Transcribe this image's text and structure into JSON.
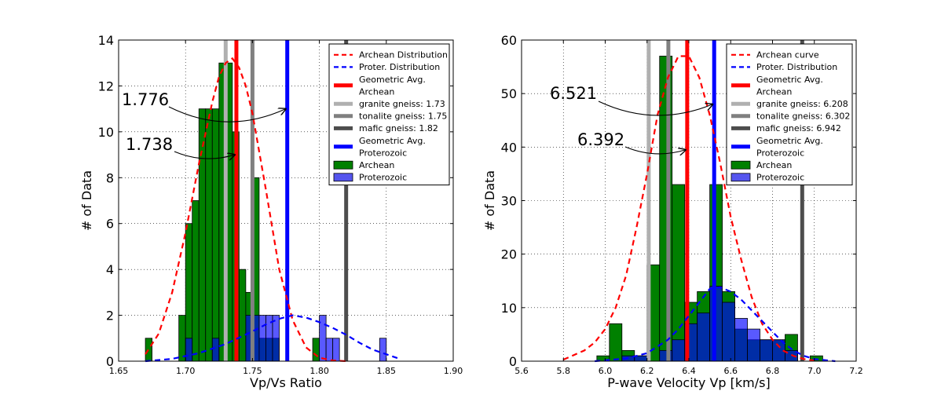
{
  "chart_data": [
    {
      "type": "bar",
      "xlabel": "Vp/Vs Ratio",
      "ylabel": "# of Data",
      "xlim": [
        1.65,
        1.9
      ],
      "ylim": [
        0,
        14
      ],
      "xticks": [
        1.65,
        1.7,
        1.75,
        1.8,
        1.85,
        1.9
      ],
      "xtick_labels": [
        "1.65",
        "1.70",
        "1.75",
        "1.80",
        "1.85",
        "1.90"
      ],
      "yticks": [
        0,
        2,
        4,
        6,
        8,
        10,
        12,
        14
      ],
      "ytick_labels": [
        "0",
        "2",
        "4",
        "6",
        "8",
        "10",
        "12",
        "14"
      ],
      "grid": true,
      "legend_position": "top-right",
      "series": [
        {
          "name": "Archean",
          "kind": "histogram",
          "color": "#008000",
          "bins": [
            {
              "x0": 1.67,
              "x1": 1.675,
              "value": 1
            },
            {
              "x0": 1.695,
              "x1": 1.7,
              "value": 2
            },
            {
              "x0": 1.7,
              "x1": 1.705,
              "value": 6
            },
            {
              "x0": 1.705,
              "x1": 1.71,
              "value": 7
            },
            {
              "x0": 1.71,
              "x1": 1.715,
              "value": 11
            },
            {
              "x0": 1.715,
              "x1": 1.72,
              "value": 11
            },
            {
              "x0": 1.72,
              "x1": 1.725,
              "value": 11
            },
            {
              "x0": 1.725,
              "x1": 1.73,
              "value": 13
            },
            {
              "x0": 1.73,
              "x1": 1.735,
              "value": 13
            },
            {
              "x0": 1.735,
              "x1": 1.74,
              "value": 10
            },
            {
              "x0": 1.74,
              "x1": 1.745,
              "value": 4
            },
            {
              "x0": 1.745,
              "x1": 1.75,
              "value": 3
            },
            {
              "x0": 1.75,
              "x1": 1.755,
              "value": 8
            },
            {
              "x0": 1.755,
              "x1": 1.76,
              "value": 1
            },
            {
              "x0": 1.76,
              "x1": 1.765,
              "value": 1
            },
            {
              "x0": 1.765,
              "x1": 1.77,
              "value": 1
            },
            {
              "x0": 1.795,
              "x1": 1.8,
              "value": 1
            }
          ]
        },
        {
          "name": "Proterozoic",
          "kind": "histogram",
          "color": "#0000ff",
          "bins": [
            {
              "x0": 1.7,
              "x1": 1.705,
              "value": 1
            },
            {
              "x0": 1.72,
              "x1": 1.725,
              "value": 1
            },
            {
              "x0": 1.745,
              "x1": 1.75,
              "value": 2
            },
            {
              "x0": 1.75,
              "x1": 1.755,
              "value": 2
            },
            {
              "x0": 1.755,
              "x1": 1.76,
              "value": 2
            },
            {
              "x0": 1.76,
              "x1": 1.765,
              "value": 2
            },
            {
              "x0": 1.765,
              "x1": 1.77,
              "value": 2
            },
            {
              "x0": 1.8,
              "x1": 1.805,
              "value": 2
            },
            {
              "x0": 1.805,
              "x1": 1.81,
              "value": 1
            },
            {
              "x0": 1.81,
              "x1": 1.815,
              "value": 1
            },
            {
              "x0": 1.845,
              "x1": 1.85,
              "value": 1
            }
          ]
        },
        {
          "name": "Archean Distribution",
          "kind": "dashed-line",
          "color": "#ff0000",
          "x": [
            1.67,
            1.68,
            1.69,
            1.7,
            1.71,
            1.72,
            1.725,
            1.73,
            1.735,
            1.74,
            1.745,
            1.75,
            1.76,
            1.77,
            1.78,
            1.79,
            1.8,
            1.81,
            1.82
          ],
          "y": [
            0.3,
            1.2,
            3.0,
            5.6,
            8.6,
            11.3,
            12.4,
            13.0,
            13.2,
            12.8,
            12.0,
            10.8,
            7.5,
            4.0,
            1.8,
            0.6,
            0.15,
            0.03,
            0.0
          ]
        },
        {
          "name": "Proter. Distribution",
          "kind": "dashed-line",
          "color": "#0000ff",
          "x": [
            1.67,
            1.69,
            1.71,
            1.73,
            1.75,
            1.76,
            1.77,
            1.78,
            1.79,
            1.8,
            1.81,
            1.82,
            1.83,
            1.84,
            1.85,
            1.86
          ],
          "y": [
            0.0,
            0.1,
            0.35,
            0.75,
            1.3,
            1.6,
            1.85,
            2.0,
            1.9,
            1.7,
            1.45,
            1.15,
            0.8,
            0.5,
            0.3,
            0.1
          ]
        }
      ],
      "vlines": [
        {
          "name": "Geometric Avg. Archean",
          "x": 1.738,
          "color": "#ff0000"
        },
        {
          "name": "granite gneiss: 1.73",
          "x": 1.73,
          "color": "#b0b0b0"
        },
        {
          "name": "tonalite gneiss: 1.75",
          "x": 1.75,
          "color": "#808080"
        },
        {
          "name": "mafic gneiss: 1.82",
          "x": 1.82,
          "color": "#4d4d4d"
        },
        {
          "name": "Geometric Avg. Proterozoic",
          "x": 1.776,
          "color": "#0000ff"
        }
      ],
      "annotations": [
        {
          "text": "1.776",
          "x": 1.776,
          "y": 11
        },
        {
          "text": "1.738",
          "x": 1.738,
          "y": 9
        }
      ],
      "legend": [
        {
          "label": "Archean Distribution",
          "style": "dash",
          "color": "#ff0000"
        },
        {
          "label": "Proter. Distribution",
          "style": "dash",
          "color": "#0000ff"
        },
        {
          "label": [
            "Geometric Avg.",
            "Archean"
          ],
          "style": "thick",
          "color": "#ff0000"
        },
        {
          "label": "granite gneiss: 1.73",
          "style": "thick",
          "color": "#b0b0b0"
        },
        {
          "label": "tonalite gneiss: 1.75",
          "style": "thick",
          "color": "#808080"
        },
        {
          "label": "mafic gneiss: 1.82",
          "style": "thick",
          "color": "#4d4d4d"
        },
        {
          "label": [
            "Geometric Avg.",
            "Proterozoic"
          ],
          "style": "thick",
          "color": "#0000ff"
        },
        {
          "label": "Archean",
          "style": "patch",
          "color": "#008000"
        },
        {
          "label": "Proterozoic",
          "style": "patch",
          "color": "#5555ee"
        }
      ]
    },
    {
      "type": "bar",
      "xlabel": "P-wave Velocity Vp [km/s]",
      "ylabel": "# of Data",
      "xlim": [
        5.6,
        7.2
      ],
      "ylim": [
        0,
        60
      ],
      "xticks": [
        5.6,
        5.8,
        6.0,
        6.2,
        6.4,
        6.6,
        6.8,
        7.0,
        7.2
      ],
      "xtick_labels": [
        "5.6",
        "5.8",
        "6.0",
        "6.2",
        "6.4",
        "6.6",
        "6.8",
        "7.0",
        "7.2"
      ],
      "yticks": [
        0,
        10,
        20,
        30,
        40,
        50,
        60
      ],
      "ytick_labels": [
        "0",
        "10",
        "20",
        "30",
        "40",
        "50",
        "60"
      ],
      "grid": true,
      "legend_position": "top-right",
      "series": [
        {
          "name": "Archean",
          "kind": "histogram",
          "color": "#008000",
          "bins": [
            {
              "x0": 5.96,
              "x1": 6.02,
              "value": 1
            },
            {
              "x0": 6.02,
              "x1": 6.08,
              "value": 7
            },
            {
              "x0": 6.08,
              "x1": 6.14,
              "value": 2
            },
            {
              "x0": 6.14,
              "x1": 6.2,
              "value": 1
            },
            {
              "x0": 6.2,
              "x1": 6.26,
              "value": 18
            },
            {
              "x0": 6.26,
              "x1": 6.32,
              "value": 57
            },
            {
              "x0": 6.32,
              "x1": 6.38,
              "value": 33
            },
            {
              "x0": 6.38,
              "x1": 6.44,
              "value": 11
            },
            {
              "x0": 6.44,
              "x1": 6.5,
              "value": 13
            },
            {
              "x0": 6.5,
              "x1": 6.56,
              "value": 33
            },
            {
              "x0": 6.56,
              "x1": 6.62,
              "value": 13
            },
            {
              "x0": 6.62,
              "x1": 6.68,
              "value": 6
            },
            {
              "x0": 6.68,
              "x1": 6.74,
              "value": 4
            },
            {
              "x0": 6.74,
              "x1": 6.8,
              "value": 4
            },
            {
              "x0": 6.8,
              "x1": 6.86,
              "value": 4
            },
            {
              "x0": 6.86,
              "x1": 6.92,
              "value": 5
            },
            {
              "x0": 6.98,
              "x1": 7.04,
              "value": 1
            }
          ]
        },
        {
          "name": "Proterozoic",
          "kind": "histogram",
          "color": "#0000ff",
          "bins": [
            {
              "x0": 6.08,
              "x1": 6.14,
              "value": 1
            },
            {
              "x0": 6.14,
              "x1": 6.2,
              "value": 1
            },
            {
              "x0": 6.26,
              "x1": 6.32,
              "value": 2
            },
            {
              "x0": 6.32,
              "x1": 6.38,
              "value": 4
            },
            {
              "x0": 6.38,
              "x1": 6.44,
              "value": 7
            },
            {
              "x0": 6.44,
              "x1": 6.5,
              "value": 9
            },
            {
              "x0": 6.5,
              "x1": 6.56,
              "value": 14
            },
            {
              "x0": 6.56,
              "x1": 6.62,
              "value": 11
            },
            {
              "x0": 6.62,
              "x1": 6.68,
              "value": 8
            },
            {
              "x0": 6.68,
              "x1": 6.74,
              "value": 6
            },
            {
              "x0": 6.74,
              "x1": 6.8,
              "value": 4
            },
            {
              "x0": 6.8,
              "x1": 6.86,
              "value": 4
            },
            {
              "x0": 6.86,
              "x1": 6.92,
              "value": 2
            }
          ]
        },
        {
          "name": "Archean curve",
          "kind": "dashed-line",
          "color": "#ff0000",
          "x": [
            5.8,
            5.9,
            5.95,
            6.0,
            6.05,
            6.1,
            6.15,
            6.2,
            6.25,
            6.3,
            6.35,
            6.4,
            6.45,
            6.5,
            6.55,
            6.6,
            6.65,
            6.7,
            6.75,
            6.8,
            6.85,
            6.9,
            6.95,
            7.0
          ],
          "y": [
            0.3,
            2,
            3.5,
            6,
            10,
            16,
            25,
            35,
            46,
            53,
            57,
            57,
            53,
            46,
            37,
            27,
            19,
            12,
            7,
            4,
            2,
            1,
            0.4,
            0.1
          ]
        },
        {
          "name": "Proter. Distribution",
          "kind": "dashed-line",
          "color": "#0000ff",
          "x": [
            5.95,
            6.1,
            6.2,
            6.3,
            6.35,
            6.4,
            6.45,
            6.5,
            6.55,
            6.6,
            6.65,
            6.7,
            6.75,
            6.8,
            6.85,
            6.9,
            6.95,
            7.0,
            7.1
          ],
          "y": [
            0,
            0.5,
            1.5,
            4,
            6,
            8.5,
            11,
            13.5,
            13.8,
            13,
            11.5,
            9.5,
            7.5,
            5.5,
            3.5,
            2,
            1,
            0.4,
            0
          ]
        }
      ],
      "vlines": [
        {
          "name": "Geometric Avg. Archean",
          "x": 6.392,
          "color": "#ff0000"
        },
        {
          "name": "granite gneiss: 6.208",
          "x": 6.208,
          "color": "#b0b0b0"
        },
        {
          "name": "tonalite gneiss: 6.302",
          "x": 6.302,
          "color": "#808080"
        },
        {
          "name": "mafic gneiss: 6.942",
          "x": 6.942,
          "color": "#4d4d4d"
        },
        {
          "name": "Geometric Avg. Proterozoic",
          "x": 6.521,
          "color": "#0000ff"
        }
      ],
      "annotations": [
        {
          "text": "6.521",
          "x": 6.521,
          "y": 48
        },
        {
          "text": "6.392",
          "x": 6.392,
          "y": 39.5
        }
      ],
      "legend": [
        {
          "label": "Archean curve",
          "style": "dash",
          "color": "#ff0000"
        },
        {
          "label": "Proter. Distribution",
          "style": "dash",
          "color": "#0000ff"
        },
        {
          "label": [
            "Geometric Avg.",
            "Archean"
          ],
          "style": "thick",
          "color": "#ff0000"
        },
        {
          "label": "granite gneiss: 6.208",
          "style": "thick",
          "color": "#b0b0b0"
        },
        {
          "label": "tonalite gneiss: 6.302",
          "style": "thick",
          "color": "#808080"
        },
        {
          "label": "mafic gneiss: 6.942",
          "style": "thick",
          "color": "#4d4d4d"
        },
        {
          "label": [
            "Geometric Avg.",
            "Proterozoic"
          ],
          "style": "thick",
          "color": "#0000ff"
        },
        {
          "label": "Archean",
          "style": "patch",
          "color": "#008000"
        },
        {
          "label": "Proterozoic",
          "style": "patch",
          "color": "#5555ee"
        }
      ]
    }
  ]
}
